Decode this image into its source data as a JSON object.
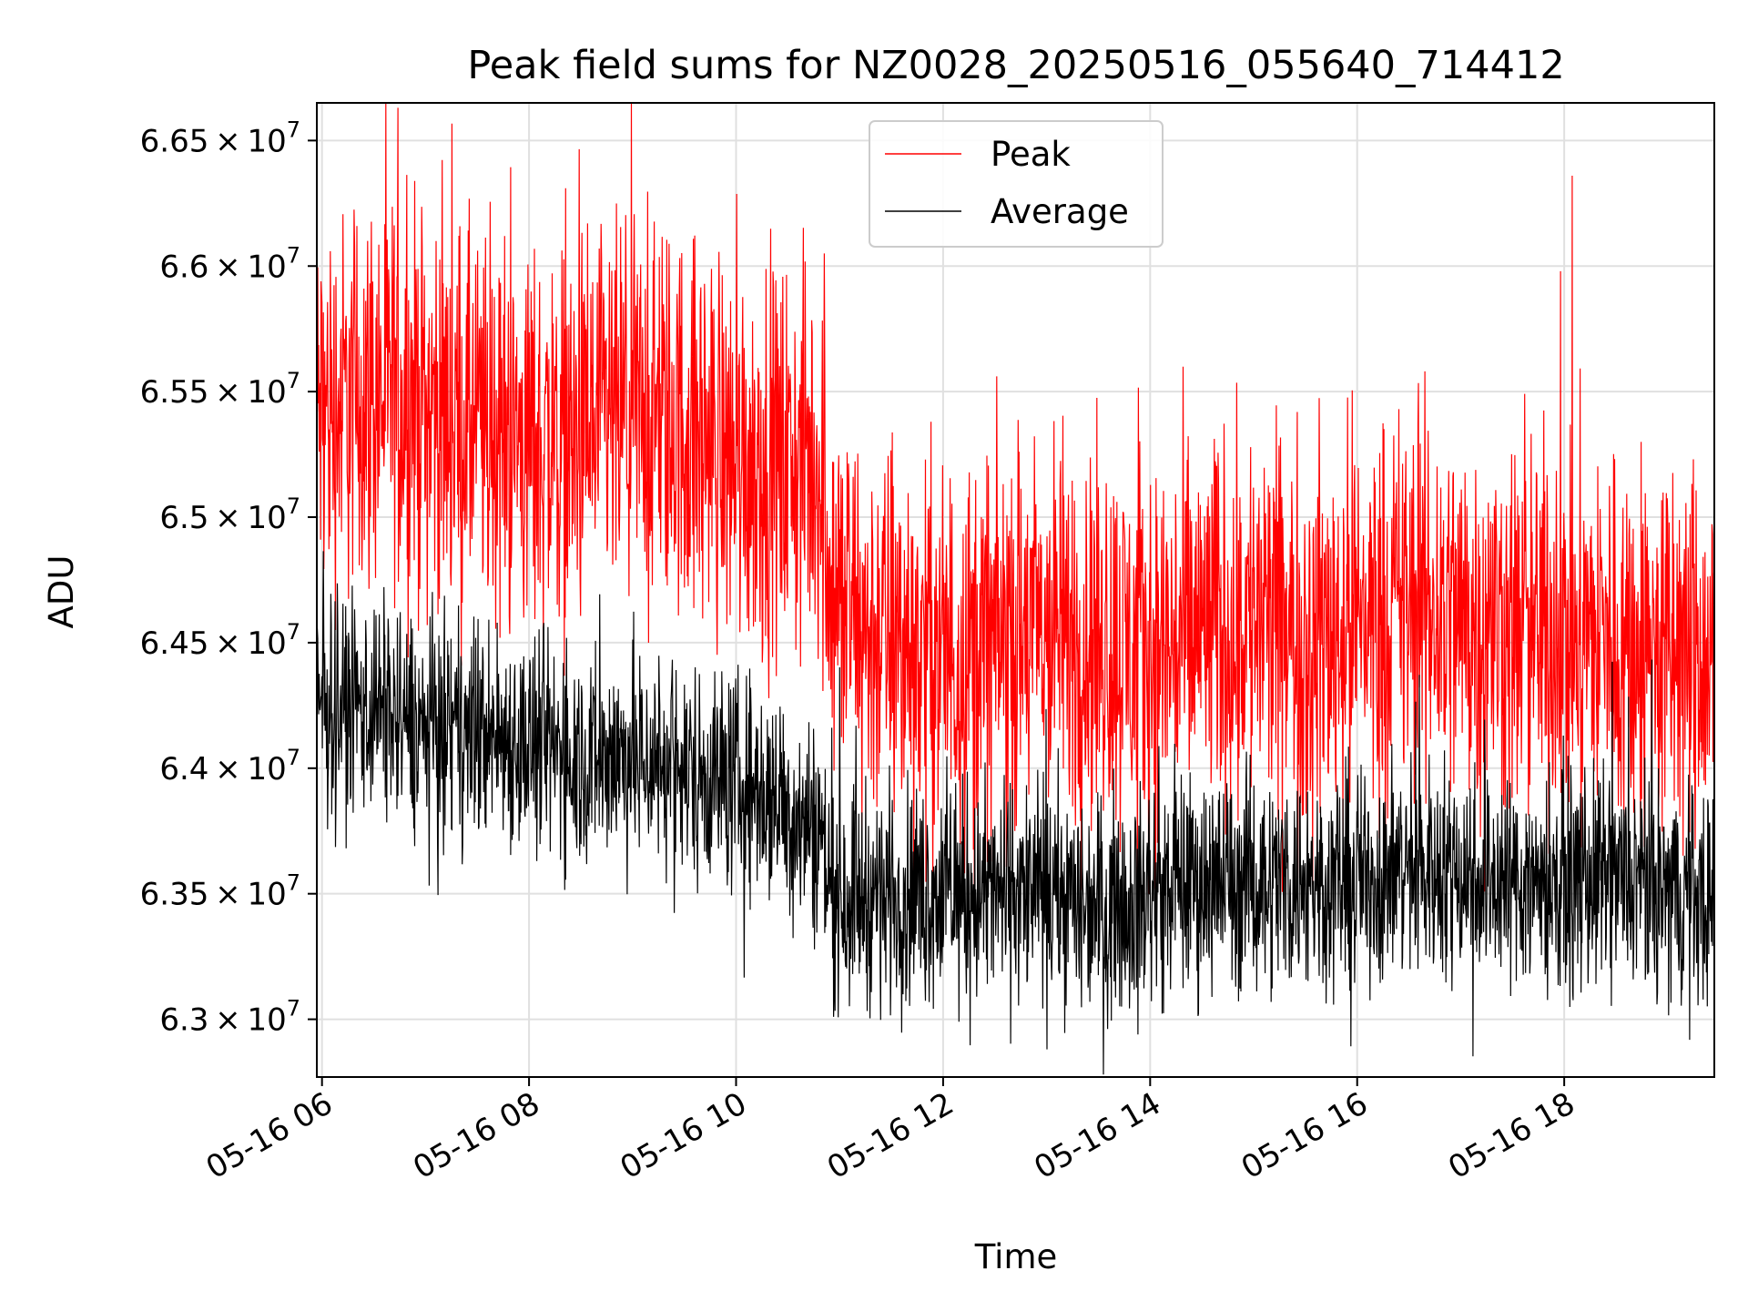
{
  "chart_data": {
    "type": "line",
    "title": "Peak field sums for NZ0028_20250516_055640_714412",
    "xlabel": "Time",
    "ylabel": "ADU",
    "grid": true,
    "legend_position": "top-center",
    "x_tick_labels": [
      "05-16 06",
      "05-16 08",
      "05-16 10",
      "05-16 12",
      "05-16 14",
      "05-16 16",
      "05-16 18"
    ],
    "x_tick_hours": [
      6,
      8,
      10,
      12,
      14,
      16,
      18
    ],
    "xlim_hours": [
      5.95,
      19.45
    ],
    "y_ticks": [
      {
        "value": 63000000,
        "mantissa": "6.3",
        "times": "×",
        "base": "10",
        "exp": "7"
      },
      {
        "value": 63500000,
        "mantissa": "6.35",
        "times": "×",
        "base": "10",
        "exp": "7"
      },
      {
        "value": 64000000,
        "mantissa": "6.4",
        "times": "×",
        "base": "10",
        "exp": "7"
      },
      {
        "value": 64500000,
        "mantissa": "6.45",
        "times": "×",
        "base": "10",
        "exp": "7"
      },
      {
        "value": 65000000,
        "mantissa": "6.5",
        "times": "×",
        "base": "10",
        "exp": "7"
      },
      {
        "value": 65500000,
        "mantissa": "6.55",
        "times": "×",
        "base": "10",
        "exp": "7"
      },
      {
        "value": 66000000,
        "mantissa": "6.6",
        "times": "×",
        "base": "10",
        "exp": "7"
      },
      {
        "value": 66500000,
        "mantissa": "6.65",
        "times": "×",
        "base": "10",
        "exp": "7"
      }
    ],
    "ylim": [
      62770000,
      66650000
    ],
    "series": [
      {
        "name": "Peak",
        "color": "#ff0000",
        "x_hours": [
          5.95,
          6.5,
          7.0,
          7.5,
          8.0,
          8.5,
          9.0,
          9.5,
          10.0,
          10.5,
          10.8,
          10.95,
          11.2,
          11.6,
          12.0,
          12.5,
          13.0,
          13.5,
          14.0,
          14.5,
          15.0,
          15.5,
          16.0,
          16.5,
          17.0,
          17.5,
          18.0,
          18.5,
          19.0,
          19.45
        ],
        "values": [
          65400000,
          65500000,
          65450000,
          65350000,
          65300000,
          65300000,
          65400000,
          65350000,
          65250000,
          65200000,
          65200000,
          64700000,
          64550000,
          64500000,
          64450000,
          64500000,
          64550000,
          64500000,
          64450000,
          64550000,
          64600000,
          64500000,
          64600000,
          64650000,
          64600000,
          64550000,
          64550000,
          64500000,
          64450000,
          64400000
        ],
        "noise_amplitude": 1150000,
        "max": 66650000,
        "min": 63500000
      },
      {
        "name": "Average",
        "color": "#000000",
        "x_hours": [
          5.95,
          6.5,
          7.0,
          7.5,
          8.0,
          8.5,
          9.0,
          9.5,
          10.0,
          10.5,
          10.8,
          10.95,
          11.2,
          11.6,
          12.0,
          12.5,
          13.0,
          13.5,
          14.0,
          14.5,
          15.0,
          15.5,
          16.0,
          16.5,
          17.0,
          17.5,
          18.0,
          18.5,
          19.0,
          19.45
        ],
        "values": [
          64250000,
          64250000,
          64150000,
          64150000,
          64100000,
          64050000,
          64050000,
          64000000,
          63950000,
          63850000,
          63750000,
          63500000,
          63500000,
          63500000,
          63500000,
          63500000,
          63500000,
          63450000,
          63500000,
          63550000,
          63550000,
          63550000,
          63550000,
          63600000,
          63600000,
          63550000,
          63550000,
          63550000,
          63500000,
          63500000
        ],
        "noise_amplitude": 650000,
        "max": 64900000,
        "min": 62780000
      }
    ],
    "legend": [
      {
        "label": "Peak",
        "color": "#ff0000"
      },
      {
        "label": "Average",
        "color": "#000000"
      }
    ]
  }
}
